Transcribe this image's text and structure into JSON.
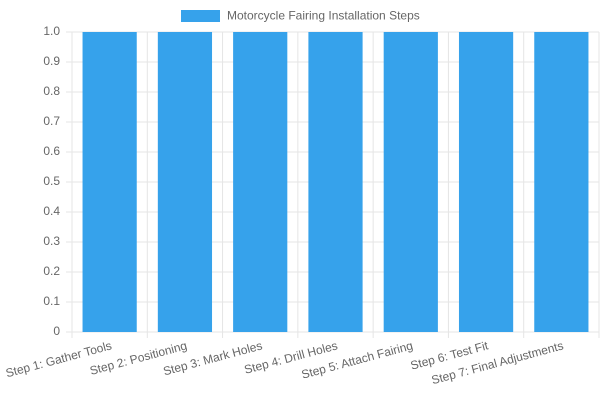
{
  "chart_data": {
    "type": "bar",
    "categories": [
      "Step 1: Gather Tools",
      "Step 2: Positioning",
      "Step 3: Mark Holes",
      "Step 4: Drill Holes",
      "Step 5: Attach Fairing",
      "Step 6: Test Fit",
      "Step 7: Final Adjustments"
    ],
    "series": [
      {
        "name": "Motorcycle Fairing Installation Steps",
        "color": "#36a2eb",
        "values": [
          1,
          1,
          1,
          1,
          1,
          1,
          1
        ]
      }
    ],
    "ylim": [
      0,
      1
    ],
    "yticks": [
      0,
      0.1,
      0.2,
      0.3,
      0.4,
      0.5,
      0.6,
      0.7,
      0.8,
      0.9,
      {
        "value": 1,
        "label": "1.0"
      }
    ],
    "grid": true,
    "legend": "top"
  }
}
